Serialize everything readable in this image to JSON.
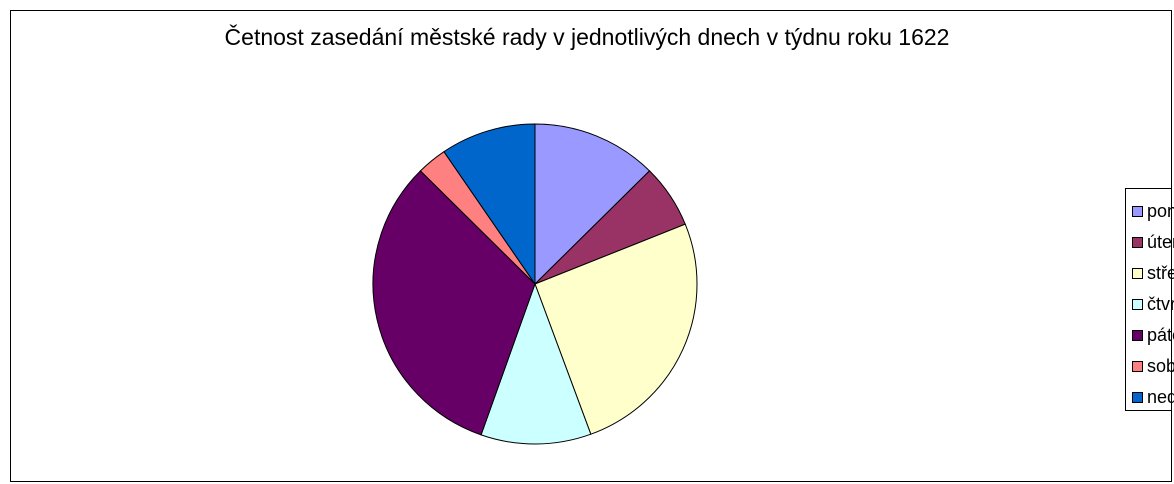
{
  "chart_data": {
    "type": "pie",
    "title": "Četnost zasedání městské rady v jednotlivých dnech v týdnu roku 1622",
    "categories": [
      "pondělí",
      "úterý",
      "středa",
      "čtvrtek",
      "pátek",
      "sobota",
      "neděle"
    ],
    "values": [
      12.5,
      6.4,
      25.5,
      11.0,
      32.1,
      3.0,
      9.5
    ],
    "colors": [
      "#9999ff",
      "#993366",
      "#ffffcc",
      "#ccffff",
      "#660066",
      "#ff8080",
      "#0066cc"
    ],
    "start_angle": "top (12 o'clock)",
    "direction": "clockwise",
    "legend_position": "right",
    "stroke_color": "#000000"
  }
}
